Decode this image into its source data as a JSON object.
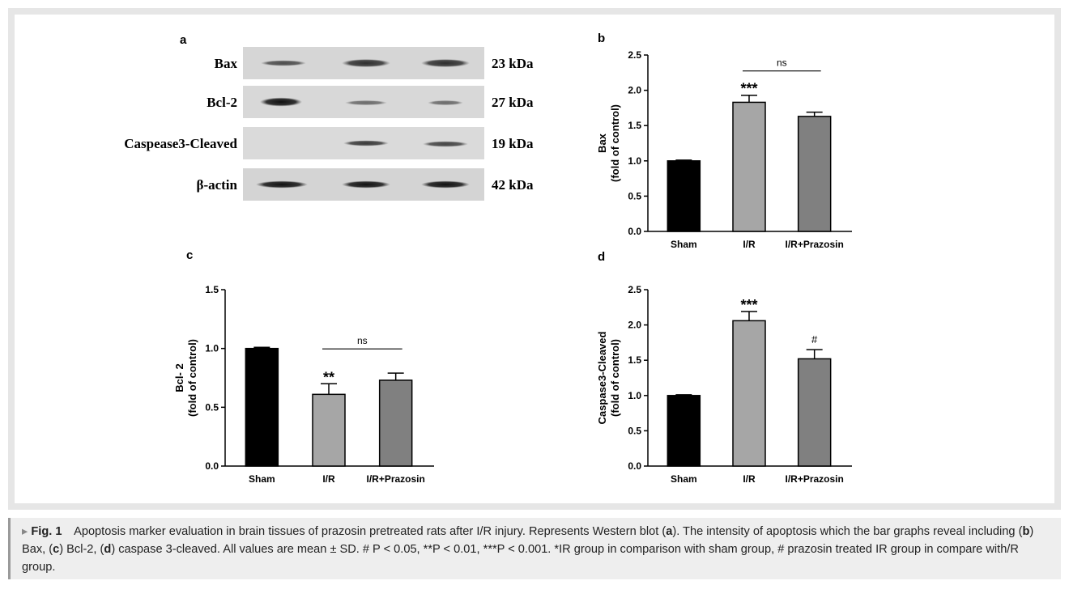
{
  "figure": {
    "blot": {
      "label": "a",
      "rows": [
        {
          "protein": "Bax",
          "size": "23 kDa"
        },
        {
          "protein": "Bcl-2",
          "size": "27 kDa"
        },
        {
          "protein": "Caspease3-Cleaved",
          "size": "19 kDa"
        },
        {
          "protein": "β-actin",
          "size": "42 kDa"
        }
      ]
    },
    "caption": {
      "marker": "▸",
      "label": "Fig. 1",
      "parts": [
        {
          "text": "Apoptosis marker evaluation in brain tissues of prazosin pretreated rats after I/R injury. Represents Western blot ("
        },
        {
          "text": "a",
          "bold": true
        },
        {
          "text": "). The intensity of apoptosis which the bar graphs reveal including ("
        },
        {
          "text": "b",
          "bold": true
        },
        {
          "text": ") Bax, ("
        },
        {
          "text": "c",
          "bold": true
        },
        {
          "text": ") Bcl-2, ("
        },
        {
          "text": "d",
          "bold": true
        },
        {
          "text": ") caspase 3-cleaved. All values are mean ± SD. # P < 0.05, **P < 0.01, ***P < 0.001. *IR group in comparison with sham group, # prazosin treated IR group in compare with/R group."
        }
      ]
    }
  },
  "chart_data": [
    {
      "type": "bar",
      "label": "b",
      "ylabel": [
        "Bax",
        "(fold of control)"
      ],
      "categories": [
        "Sham",
        "I/R",
        "I/R+Prazosin"
      ],
      "values": [
        1.0,
        1.83,
        1.63
      ],
      "errors": [
        0.01,
        0.1,
        0.06
      ],
      "colors": [
        "#000000",
        "#a6a6a6",
        "#808080"
      ],
      "ylim": [
        0,
        2.5
      ],
      "yticks": [
        {
          "value": 0,
          "label": "0.0"
        },
        0.5,
        {
          "value": 1,
          "label": "1.0"
        },
        1.5,
        {
          "value": 2,
          "label": "2.0"
        },
        2.5
      ],
      "annotations": [
        {
          "text": "***",
          "category": "I/R"
        },
        {
          "text": "ns",
          "span": [
            "I/R",
            "I/R+Prazosin"
          ]
        }
      ]
    },
    {
      "type": "bar",
      "label": "c",
      "ylabel": [
        "Bcl- 2",
        "(fold of control)"
      ],
      "categories": [
        "Sham",
        "I/R",
        "I/R+Prazosin"
      ],
      "values": [
        1.0,
        0.61,
        0.73
      ],
      "errors": [
        0.01,
        0.09,
        0.06
      ],
      "colors": [
        "#000000",
        "#a6a6a6",
        "#808080"
      ],
      "ylim": [
        0,
        1.5
      ],
      "yticks": [
        {
          "value": 0,
          "label": "0.0"
        },
        0.5,
        {
          "value": 1,
          "label": "1.0"
        },
        1.5
      ],
      "annotations": [
        {
          "text": "**",
          "category": "I/R"
        },
        {
          "text": "ns",
          "span": [
            "I/R",
            "I/R+Prazosin"
          ]
        }
      ]
    },
    {
      "type": "bar",
      "label": "d",
      "ylabel": [
        "Caspase3-Cleaved",
        "(fold of control)"
      ],
      "categories": [
        "Sham",
        "I/R",
        "I/R+Prazosin"
      ],
      "values": [
        1.0,
        2.06,
        1.52
      ],
      "errors": [
        0.01,
        0.13,
        0.13
      ],
      "colors": [
        "#000000",
        "#a6a6a6",
        "#808080"
      ],
      "ylim": [
        0,
        2.5
      ],
      "yticks": [
        {
          "value": 0,
          "label": "0.0"
        },
        0.5,
        {
          "value": 1,
          "label": "1.0"
        },
        1.5,
        {
          "value": 2,
          "label": "2.0"
        },
        2.5
      ],
      "annotations": [
        {
          "text": "***",
          "category": "I/R"
        },
        {
          "text": "#",
          "category": "I/R+Prazosin"
        }
      ]
    }
  ]
}
